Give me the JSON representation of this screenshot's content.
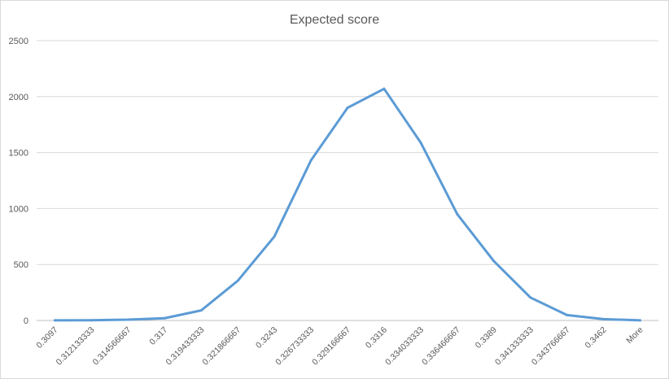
{
  "chart_data": {
    "type": "line",
    "title": "Expected score",
    "xlabel": "",
    "ylabel": "",
    "categories": [
      "0.3097",
      "0.312133333",
      "0.314566667",
      "0.317",
      "0.319433333",
      "0.321866667",
      "0.3243",
      "0.326733333",
      "0.329166667",
      "0.3316",
      "0.334033333",
      "0.336466667",
      "0.3389",
      "0.341333333",
      "0.343766667",
      "0.3462",
      "More"
    ],
    "series": [
      {
        "values": [
          1,
          2,
          7,
          20,
          90,
          355,
          750,
          1430,
          1900,
          2070,
          1590,
          950,
          530,
          205,
          48,
          12,
          1
        ],
        "color": "#5b9bd5"
      }
    ],
    "ylim": [
      0,
      2500
    ],
    "yticks": [
      0,
      500,
      1000,
      1500,
      2000,
      2500
    ],
    "grid": true,
    "legend": "none"
  }
}
